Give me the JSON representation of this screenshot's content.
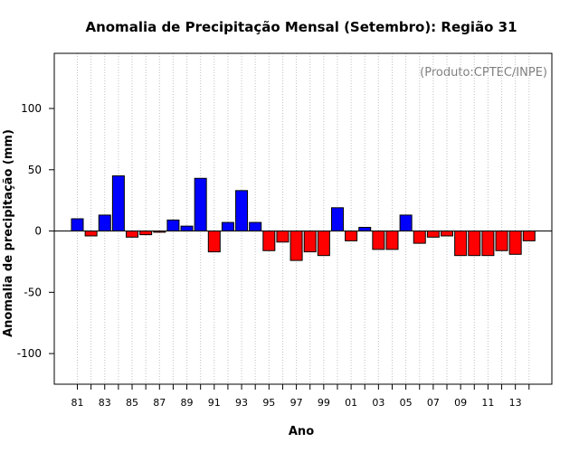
{
  "chart_data": {
    "type": "bar",
    "title": "Anomalia de Precipitação Mensal (Setembro): Região 31",
    "subtitle": "(Produto:CPTEC/INPE)",
    "xlabel": "Ano",
    "ylabel": "Anomalia de precipitação (mm)",
    "ylim": [
      -125,
      145
    ],
    "yticks": [
      -100,
      -50,
      0,
      50,
      100
    ],
    "xtick_labels": [
      "81",
      "83",
      "85",
      "87",
      "89",
      "91",
      "93",
      "95",
      "97",
      "99",
      "01",
      "03",
      "05",
      "07",
      "09",
      "11",
      "13"
    ],
    "grid": "vertical dotted",
    "categories": [
      "81",
      "82",
      "83",
      "84",
      "85",
      "86",
      "87",
      "88",
      "89",
      "90",
      "91",
      "92",
      "93",
      "94",
      "95",
      "96",
      "97",
      "98",
      "99",
      "00",
      "01",
      "02",
      "03",
      "04",
      "05",
      "06",
      "07",
      "08",
      "09",
      "10",
      "11",
      "12",
      "13",
      "14"
    ],
    "values": [
      10,
      -4,
      13,
      45,
      -5,
      -3,
      -1,
      9,
      4,
      43,
      -17,
      7,
      33,
      7,
      -16,
      -9,
      -24,
      -17,
      -20,
      19,
      -8,
      3,
      -15,
      -15,
      13,
      -10,
      -5,
      -4,
      -20,
      -20,
      -20,
      -16,
      -19,
      -8
    ],
    "colors": {
      "positive": "#0000ff",
      "negative": "#ff0000",
      "zero_line": "#000000",
      "grid": "#c0c0c0"
    }
  }
}
